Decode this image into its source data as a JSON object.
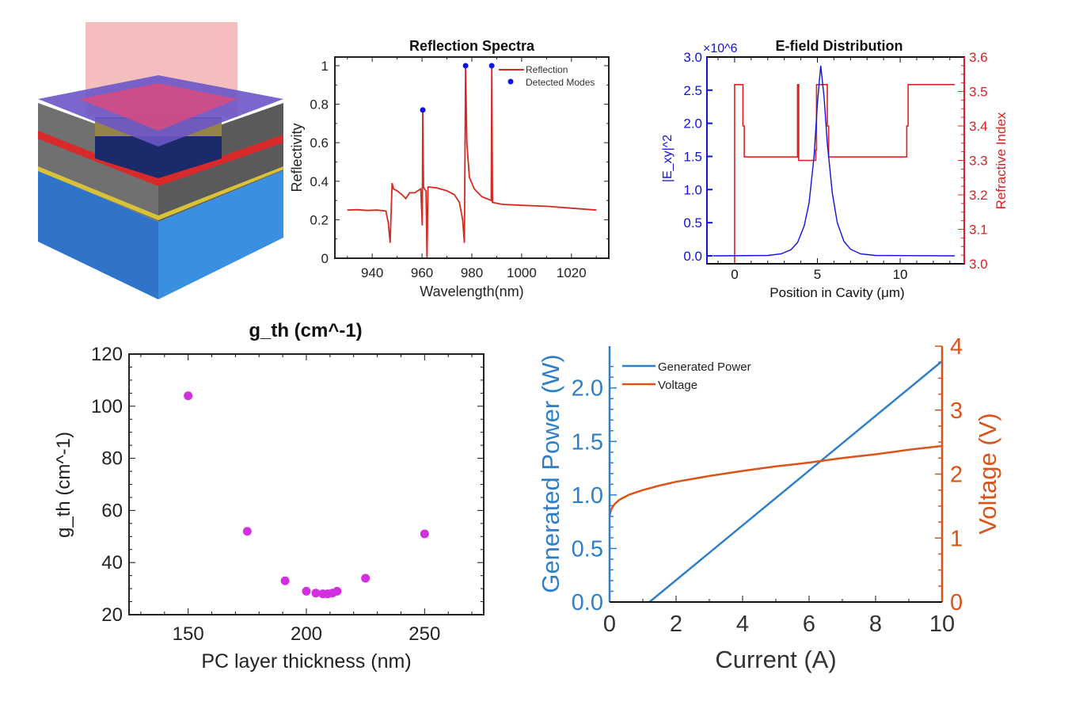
{
  "chart_data": [
    {
      "type": "line",
      "title": "Reflection Spectra",
      "xlabel": "Wavelength(nm)",
      "ylabel": "Reflectivity",
      "xlim": [
        925,
        1035
      ],
      "ylim": [
        0,
        1.045
      ],
      "xticks": [
        940,
        960,
        980,
        1000,
        1020
      ],
      "yticks": [
        0,
        0.2,
        0.4,
        0.6,
        0.8,
        1
      ],
      "ytick_labels": [
        "0",
        "0.2",
        "0.4",
        "0.6",
        "0.8",
        "1"
      ],
      "legend": {
        "position": "top-right",
        "entries": [
          "Reflection",
          "Detected Modes"
        ]
      },
      "colors": {
        "Reflection": "#d42a20",
        "Detected Modes": "#0a14e6"
      },
      "series": [
        {
          "name": "Reflection",
          "x": [
            930,
            934,
            938,
            942,
            945.5,
            946.5,
            947.2,
            948,
            948.6,
            950,
            952,
            953.5,
            955,
            957,
            959.5,
            960.1,
            960.3,
            960.6,
            961,
            961.6,
            962,
            962.4,
            963,
            966,
            970,
            973,
            975,
            976.3,
            977,
            977.5,
            978,
            979,
            981,
            984,
            987.8,
            988,
            988.3,
            992,
            1000,
            1010,
            1020,
            1030
          ],
          "y": [
            0.25,
            0.252,
            0.248,
            0.25,
            0.245,
            0.18,
            0.08,
            0.39,
            0.36,
            0.35,
            0.33,
            0.31,
            0.34,
            0.34,
            0.36,
            0.17,
            0.77,
            0.37,
            0.36,
            0.35,
            0.0,
            0.37,
            0.37,
            0.365,
            0.35,
            0.33,
            0.29,
            0.2,
            0.08,
            1.0,
            0.6,
            0.42,
            0.36,
            0.32,
            0.3,
            1.0,
            0.29,
            0.28,
            0.275,
            0.27,
            0.26,
            0.25
          ]
        },
        {
          "name": "Detected Modes",
          "x": [
            960.3,
            977.5,
            988
          ],
          "y": [
            0.77,
            1.0,
            1.0
          ]
        }
      ]
    },
    {
      "type": "line",
      "title": "E-field Distribution",
      "xlabel": "Position in Cavity (μm)",
      "ylabel": "|E_xy|^2",
      "ylabel_right": "Refractive Index",
      "y_multiplier": "×10^6",
      "xlim": [
        -1.67,
        13.87
      ],
      "ylim": [
        -0.12,
        3.0
      ],
      "ylim_right": [
        3.0,
        3.6
      ],
      "xticks": [
        0,
        5,
        10
      ],
      "yticks": [
        "0.0",
        "0.5",
        "1.0",
        "1.5",
        "2.0",
        "2.5",
        "3.0"
      ],
      "yticks_right": [
        "3.0",
        "3.1",
        "3.2",
        "3.3",
        "3.4",
        "3.5",
        "3.6"
      ],
      "colors": {
        "field": "#1010e0",
        "index": "#e02020"
      },
      "series": [
        {
          "name": "",
          "axis": "left",
          "x": [
            -1.3,
            2,
            2.8,
            3.4,
            3.8,
            4.2,
            4.5,
            4.8,
            5.0,
            5.2,
            5.4,
            5.6,
            5.9,
            6.2,
            6.6,
            7.0,
            7.6,
            8.5,
            13.3
          ],
          "y": [
            0,
            0.005,
            0.03,
            0.09,
            0.2,
            0.45,
            0.8,
            1.5,
            2.3,
            2.87,
            2.4,
            1.7,
            0.95,
            0.5,
            0.22,
            0.1,
            0.03,
            0.005,
            0
          ]
        },
        {
          "name": "",
          "axis": "right",
          "x": [
            -1.3,
            0,
            0,
            0.5,
            0.5,
            0.58,
            0.58,
            3.8,
            3.8,
            3.87,
            3.87,
            4.9,
            4.9,
            4.95,
            4.95,
            5.6,
            5.6,
            5.68,
            5.68,
            10.4,
            10.4,
            10.48,
            10.48,
            13.3
          ],
          "y": [
            3.0,
            3.0,
            3.52,
            3.52,
            3.4,
            3.4,
            3.31,
            3.31,
            3.52,
            3.52,
            3.3,
            3.3,
            3.33,
            3.33,
            3.52,
            3.52,
            3.4,
            3.4,
            3.31,
            3.31,
            3.4,
            3.4,
            3.52,
            3.52
          ]
        }
      ]
    },
    {
      "type": "scatter",
      "title": "g_th (cm^-1)",
      "xlabel": "PC layer thickness (nm)",
      "ylabel": "g_th (cm^-1)",
      "xlim": [
        125,
        275
      ],
      "ylim": [
        20,
        120
      ],
      "xticks": [
        150,
        200,
        250
      ],
      "yticks": [
        20,
        40,
        60,
        80,
        100,
        120
      ],
      "colors": {
        "points": "#d22fe0"
      },
      "series": [
        {
          "name": "",
          "x": [
            150,
            175,
            191,
            200,
            204,
            207,
            209,
            211,
            213,
            225,
            250
          ],
          "y": [
            104,
            52,
            33,
            29,
            28.3,
            28,
            28,
            28.3,
            29,
            34,
            51
          ]
        }
      ]
    },
    {
      "type": "line",
      "title": "",
      "xlabel": "Current (A)",
      "ylabel": "Generated Power (W)",
      "ylabel_right": "Voltage (V)",
      "xlim": [
        0,
        10
      ],
      "ylim": [
        0,
        2.39
      ],
      "ylim_right": [
        0,
        4
      ],
      "xticks": [
        0,
        2,
        4,
        6,
        8,
        10
      ],
      "yticks": [
        "0.0",
        "0.5",
        "1.0",
        "1.5",
        "2.0"
      ],
      "yticks_right": [
        0,
        1,
        2,
        3,
        4
      ],
      "legend": {
        "position": "top-left",
        "entries": [
          "Generated Power",
          "Voltage"
        ]
      },
      "colors": {
        "Generated Power": "#2f7ec8",
        "Voltage": "#d9541a"
      },
      "series": [
        {
          "name": "Generated Power",
          "axis": "left",
          "x": [
            1.2,
            10
          ],
          "y": [
            0,
            2.25
          ]
        },
        {
          "name": "Voltage",
          "axis": "right",
          "x": [
            0,
            0.05,
            0.15,
            0.3,
            0.6,
            1,
            1.5,
            2,
            3,
            4,
            5,
            6,
            7,
            8,
            9,
            10
          ],
          "y": [
            1.35,
            1.45,
            1.53,
            1.6,
            1.68,
            1.75,
            1.82,
            1.88,
            1.97,
            2.05,
            2.12,
            2.18,
            2.25,
            2.31,
            2.38,
            2.44
          ]
        }
      ]
    }
  ]
}
